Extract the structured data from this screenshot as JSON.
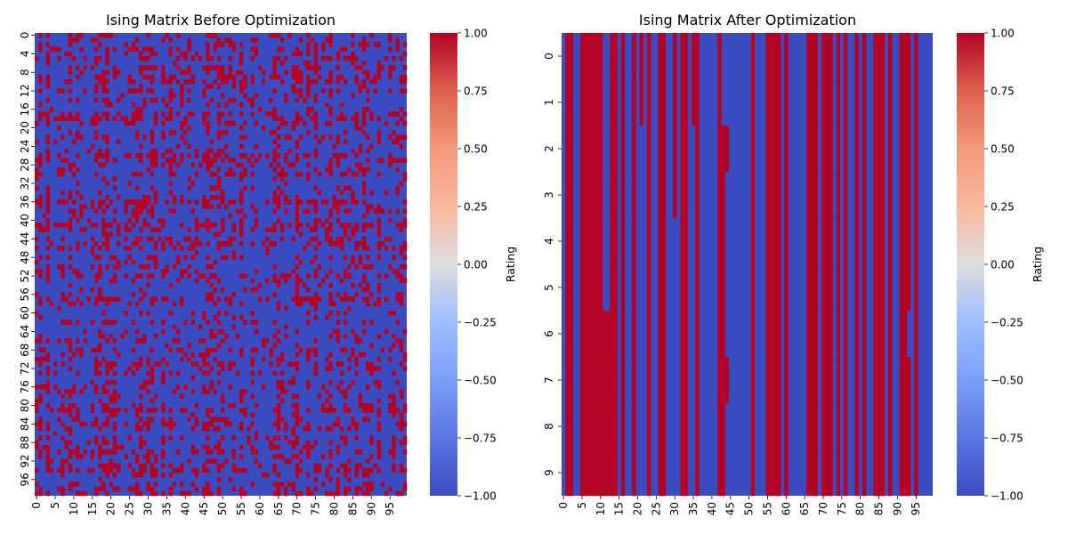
{
  "chart_data": [
    {
      "type": "heatmap",
      "title": "Ising Matrix Before Optimization",
      "rows": 100,
      "cols": 100,
      "cell_values": [
        -1,
        1
      ],
      "colormap": "coolwarm",
      "vmin": -1.0,
      "vmax": 1.0,
      "xticks": [
        "0",
        "5",
        "10",
        "15",
        "20",
        "25",
        "30",
        "35",
        "40",
        "45",
        "50",
        "55",
        "60",
        "65",
        "70",
        "75",
        "80",
        "85",
        "90",
        "95"
      ],
      "yticks": [
        "0",
        "4",
        "8",
        "12",
        "16",
        "20",
        "24",
        "28",
        "32",
        "36",
        "40",
        "44",
        "48",
        "52",
        "56",
        "60",
        "64",
        "68",
        "72",
        "76",
        "80",
        "84",
        "88",
        "92",
        "96"
      ],
      "colorbar_label": "Rating",
      "colorbar_ticks": [
        "1.00",
        "0.75",
        "0.50",
        "0.25",
        "0.00",
        "−0.25",
        "−0.50",
        "−0.75",
        "−1.00"
      ]
    },
    {
      "type": "heatmap",
      "title": "Ising Matrix After Optimization",
      "rows": 10,
      "cols": 100,
      "cell_values": [
        -1,
        1
      ],
      "colormap": "coolwarm",
      "vmin": -1.0,
      "vmax": 1.0,
      "xticks": [
        "0",
        "5",
        "10",
        "15",
        "20",
        "25",
        "30",
        "35",
        "40",
        "45",
        "50",
        "55",
        "60",
        "65",
        "70",
        "75",
        "80",
        "85",
        "90",
        "95"
      ],
      "yticks": [
        "0",
        "1",
        "2",
        "3",
        "4",
        "5",
        "6",
        "7",
        "8",
        "9"
      ],
      "colorbar_label": "Rating",
      "colorbar_ticks": [
        "1.00",
        "0.75",
        "0.50",
        "0.25",
        "0.00",
        "−0.25",
        "−0.50",
        "−0.75",
        "−1.00"
      ],
      "red_columns": [
        1,
        2,
        5,
        6,
        7,
        8,
        9,
        10,
        13,
        14,
        16,
        19,
        23,
        26,
        27,
        32,
        33,
        36,
        42,
        51,
        55,
        56,
        57,
        58,
        60,
        66,
        67,
        68,
        70,
        71,
        72,
        74,
        76,
        79,
        81,
        84,
        85,
        86,
        88,
        91,
        92,
        93,
        95
      ],
      "partial_red": [
        {
          "col": 11,
          "rows": [
            6,
            7,
            8,
            9
          ]
        },
        {
          "col": 12,
          "rows": [
            6,
            7,
            8,
            9
          ]
        },
        {
          "col": 21,
          "rows": [
            0,
            1
          ]
        },
        {
          "col": 30,
          "rows": [
            0,
            1,
            2,
            3
          ]
        },
        {
          "col": 35,
          "rows": [
            0,
            1
          ]
        },
        {
          "col": 43,
          "rows": [
            2,
            3,
            4,
            5,
            6,
            7,
            8,
            9
          ]
        },
        {
          "col": 44,
          "rows": [
            2,
            7
          ]
        }
      ],
      "blue_cells": [
        {
          "col": 31,
          "rows": [
            4,
            5,
            6,
            7,
            8,
            9
          ]
        },
        {
          "col": 49,
          "rows": [
            5,
            6,
            7,
            8,
            9
          ]
        },
        {
          "col": 53,
          "rows": [
            9
          ]
        },
        {
          "col": 93,
          "rows": [
            6
          ]
        }
      ]
    }
  ],
  "colors": {
    "low": "#3b4cc0",
    "mid": "#dddddd",
    "high": "#b40426"
  }
}
